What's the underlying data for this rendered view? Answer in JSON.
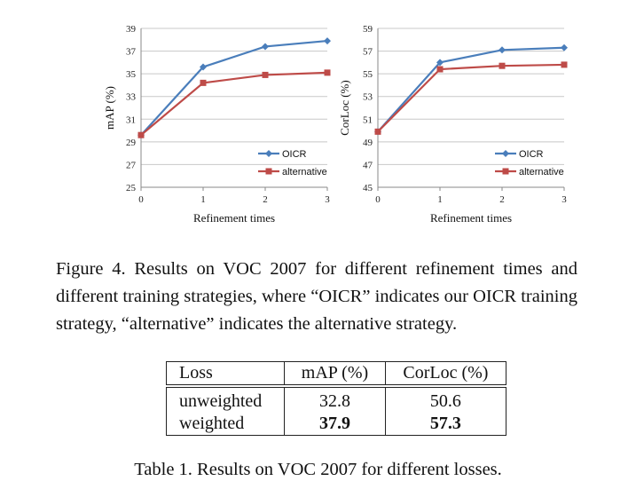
{
  "figure": {
    "caption": "Figure 4. Results on VOC 2007 for different refinement times and different training strategies, where “OICR” indicates our OICR training strategy, “alternative” indicates the alternative strategy."
  },
  "chart_data": [
    {
      "type": "line",
      "xlabel": "Refinement times",
      "ylabel": "mAP (%)",
      "x": [
        0,
        1,
        2,
        3
      ],
      "ylim": [
        25,
        39
      ],
      "yticks": [
        25,
        27,
        29,
        31,
        33,
        35,
        37,
        39
      ],
      "grid": true,
      "legend_position": "bottom-right",
      "series": [
        {
          "name": "OICR",
          "color": "#4a7ebb",
          "marker": "diamond",
          "values": [
            29.6,
            35.6,
            37.4,
            37.9
          ]
        },
        {
          "name": "alternative",
          "color": "#be4b48",
          "marker": "square",
          "values": [
            29.6,
            34.2,
            34.9,
            35.1
          ]
        }
      ]
    },
    {
      "type": "line",
      "xlabel": "Refinement times",
      "ylabel": "CorLoc (%)",
      "x": [
        0,
        1,
        2,
        3
      ],
      "ylim": [
        45,
        59
      ],
      "yticks": [
        45,
        47,
        49,
        51,
        53,
        55,
        57,
        59
      ],
      "grid": true,
      "legend_position": "bottom-right",
      "series": [
        {
          "name": "OICR",
          "color": "#4a7ebb",
          "marker": "diamond",
          "values": [
            49.9,
            56.0,
            57.1,
            57.3
          ]
        },
        {
          "name": "alternative",
          "color": "#be4b48",
          "marker": "square",
          "values": [
            49.9,
            55.4,
            55.7,
            55.8
          ]
        }
      ]
    }
  ],
  "table": {
    "headers": [
      "Loss",
      "mAP (%)",
      "CorLoc (%)"
    ],
    "rows": [
      {
        "loss": "unweighted",
        "map": "32.8",
        "corloc": "50.6"
      },
      {
        "loss": "weighted",
        "map": "37.9",
        "corloc": "57.3"
      }
    ],
    "caption": "Table 1. Results on VOC 2007 for different losses."
  }
}
